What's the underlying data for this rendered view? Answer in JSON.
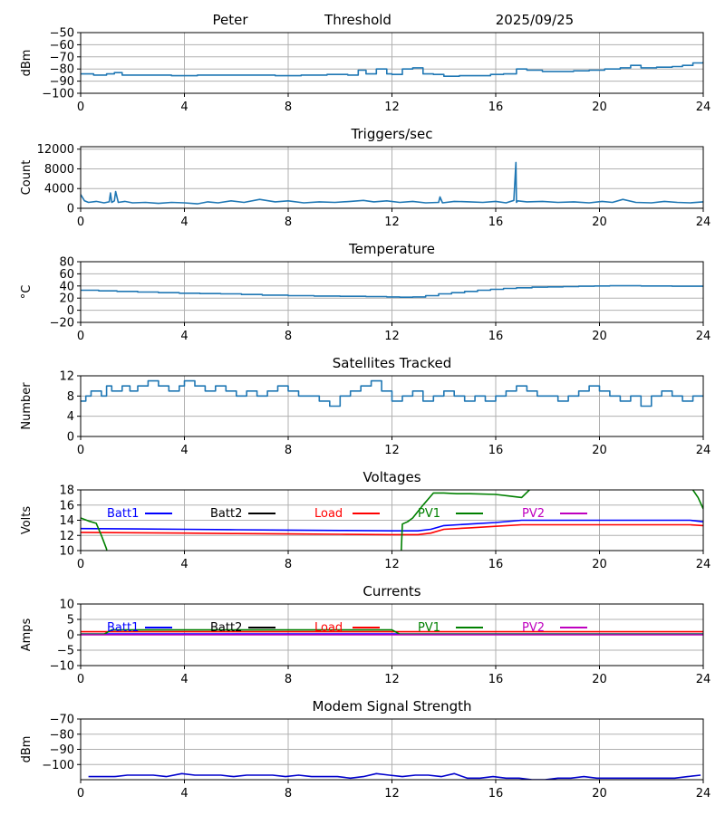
{
  "header": {
    "name": "Peter",
    "subtitle": "Threshold",
    "date": "2025/09/25"
  },
  "chart_data": [
    {
      "id": "threshold",
      "type": "line",
      "title": "",
      "ylabel": "dBm",
      "xlim": [
        0,
        24
      ],
      "xticks": [
        0,
        4,
        8,
        12,
        16,
        20,
        24
      ],
      "ylim": [
        -100,
        -50
      ],
      "yticks": [
        -100,
        -90,
        -80,
        -70,
        -60,
        -50
      ],
      "grid": true,
      "series": [
        {
          "color": "#1f77b4",
          "step": true,
          "x": [
            0,
            0.5,
            1.0,
            1.3,
            1.6,
            2.5,
            3.5,
            4.5,
            5.5,
            6.5,
            7.5,
            8.5,
            9.5,
            10.3,
            10.7,
            11.0,
            11.4,
            11.8,
            12.0,
            12.4,
            12.8,
            13.2,
            13.6,
            14.0,
            14.6,
            15.2,
            15.8,
            16.3,
            16.8,
            17.2,
            17.8,
            18.4,
            19.0,
            19.6,
            20.2,
            20.8,
            21.2,
            21.6,
            22.2,
            22.8,
            23.2,
            23.6,
            24.0
          ],
          "y": [
            -84,
            -85,
            -84,
            -83,
            -85,
            -85,
            -85.5,
            -85,
            -85,
            -85,
            -85.5,
            -85,
            -84.5,
            -85,
            -81,
            -84,
            -80,
            -84,
            -84.5,
            -80,
            -79,
            -84,
            -84.5,
            -86,
            -85.5,
            -85.5,
            -84.5,
            -84,
            -80,
            -81,
            -82,
            -82,
            -81.5,
            -81,
            -80,
            -79,
            -77,
            -79,
            -78.5,
            -78,
            -77,
            -75,
            -74
          ]
        }
      ]
    },
    {
      "id": "triggers",
      "type": "line",
      "title": "Triggers/sec",
      "ylabel": "Count",
      "xlim": [
        0,
        24
      ],
      "xticks": [
        0,
        4,
        8,
        12,
        16,
        20,
        24
      ],
      "ylim": [
        0,
        12500
      ],
      "yticks": [
        0,
        4000,
        8000,
        12000
      ],
      "grid": true,
      "series": [
        {
          "color": "#1f77b4",
          "step": false,
          "x": [
            0,
            0.15,
            0.3,
            0.6,
            0.9,
            1.1,
            1.15,
            1.2,
            1.3,
            1.35,
            1.45,
            1.7,
            2.0,
            2.5,
            3.0,
            3.5,
            4.0,
            4.5,
            4.9,
            5.3,
            5.8,
            6.3,
            6.9,
            7.5,
            8.0,
            8.6,
            9.2,
            9.8,
            10.4,
            10.9,
            11.3,
            11.8,
            12.3,
            12.8,
            13.3,
            13.8,
            13.85,
            13.95,
            14.4,
            15.0,
            15.5,
            16.0,
            16.4,
            16.7,
            16.78,
            16.8,
            16.85,
            17.2,
            17.8,
            18.4,
            19.0,
            19.6,
            20.1,
            20.5,
            20.9,
            21.4,
            22.0,
            22.5,
            23.0,
            23.5,
            24.0
          ],
          "y": [
            2800,
            1500,
            1200,
            1400,
            1100,
            1300,
            3100,
            1200,
            1500,
            3400,
            1200,
            1400,
            1100,
            1200,
            1000,
            1200,
            1100,
            900,
            1300,
            1100,
            1500,
            1200,
            1800,
            1300,
            1500,
            1100,
            1300,
            1200,
            1400,
            1600,
            1300,
            1500,
            1200,
            1400,
            1100,
            1200,
            2300,
            1100,
            1400,
            1300,
            1200,
            1400,
            1100,
            1600,
            9300,
            1200,
            1500,
            1300,
            1400,
            1200,
            1300,
            1100,
            1400,
            1200,
            1800,
            1200,
            1100,
            1400,
            1200,
            1100,
            1300
          ]
        }
      ]
    },
    {
      "id": "temperature",
      "type": "line",
      "title": "Temperature",
      "ylabel": "°C",
      "xlim": [
        0,
        24
      ],
      "xticks": [
        0,
        4,
        8,
        12,
        16,
        20,
        24
      ],
      "ylim": [
        -20,
        80
      ],
      "yticks": [
        -20,
        0,
        20,
        40,
        60,
        80
      ],
      "grid": true,
      "series": [
        {
          "color": "#1f77b4",
          "step": true,
          "x": [
            0,
            0.7,
            1.4,
            2.2,
            3.0,
            3.8,
            4.6,
            5.4,
            6.2,
            7.0,
            8.0,
            9.0,
            10.0,
            11.0,
            11.8,
            12.3,
            12.8,
            13.3,
            13.8,
            14.3,
            14.8,
            15.3,
            15.8,
            16.3,
            16.8,
            17.4,
            18.0,
            18.6,
            19.2,
            19.8,
            20.4,
            21.0,
            21.6,
            22.2,
            22.8,
            23.4,
            24.0
          ],
          "y": [
            33,
            32,
            31,
            30,
            29,
            28,
            27.5,
            27,
            26,
            25,
            24,
            23.5,
            23,
            22.5,
            22,
            21.5,
            22,
            24,
            27,
            29,
            31,
            33,
            34.5,
            36,
            37,
            38,
            38.5,
            39,
            39.5,
            40,
            40.5,
            40.5,
            40,
            40,
            39.5,
            39.5,
            39
          ]
        }
      ]
    },
    {
      "id": "satellites",
      "type": "line",
      "title": "Satellites Tracked",
      "ylabel": "Number",
      "xlim": [
        0,
        24
      ],
      "xticks": [
        0,
        4,
        8,
        12,
        16,
        20,
        24
      ],
      "ylim": [
        0,
        12
      ],
      "yticks": [
        0,
        4,
        8,
        12
      ],
      "grid": true,
      "series": [
        {
          "color": "#1f77b4",
          "step": true,
          "x": [
            0,
            0.2,
            0.4,
            0.8,
            1.0,
            1.2,
            1.6,
            1.9,
            2.2,
            2.6,
            3.0,
            3.4,
            3.8,
            4.0,
            4.4,
            4.8,
            5.2,
            5.6,
            6.0,
            6.4,
            6.8,
            7.2,
            7.6,
            8.0,
            8.4,
            8.8,
            9.2,
            9.6,
            10.0,
            10.4,
            10.8,
            11.2,
            11.6,
            12.0,
            12.4,
            12.8,
            13.2,
            13.6,
            14.0,
            14.4,
            14.8,
            15.2,
            15.6,
            16.0,
            16.4,
            16.8,
            17.2,
            17.6,
            18.0,
            18.4,
            18.8,
            19.2,
            19.6,
            20.0,
            20.4,
            20.8,
            21.2,
            21.6,
            22.0,
            22.4,
            22.8,
            23.2,
            23.6,
            24.0
          ],
          "y": [
            7,
            8,
            9,
            8,
            10,
            9,
            10,
            9,
            10,
            11,
            10,
            9,
            10,
            11,
            10,
            9,
            10,
            9,
            8,
            9,
            8,
            9,
            10,
            9,
            8,
            8,
            7,
            6,
            8,
            9,
            10,
            11,
            9,
            7,
            8,
            9,
            7,
            8,
            9,
            8,
            7,
            8,
            7,
            8,
            9,
            10,
            9,
            8,
            8,
            7,
            8,
            9,
            10,
            9,
            8,
            7,
            8,
            6,
            8,
            9,
            8,
            7,
            8,
            8
          ]
        }
      ]
    },
    {
      "id": "voltages",
      "type": "line",
      "title": "Voltages",
      "ylabel": "Volts",
      "xlim": [
        0,
        24
      ],
      "xticks": [
        0,
        4,
        8,
        12,
        16,
        20,
        24
      ],
      "ylim": [
        10,
        18
      ],
      "yticks": [
        10,
        12,
        14,
        16,
        18
      ],
      "grid": true,
      "legend": [
        {
          "label": "Batt1",
          "color": "#0000ff"
        },
        {
          "label": "Batt2",
          "color": "#000000"
        },
        {
          "label": "Load",
          "color": "#ff0000"
        },
        {
          "label": "PV1",
          "color": "#008000"
        },
        {
          "label": "PV2",
          "color": "#bf00bf"
        }
      ],
      "series": [
        {
          "name": "Batt1",
          "color": "#0000ff",
          "x": [
            0,
            2,
            4,
            6,
            8,
            10,
            12,
            13,
            13.5,
            14,
            15,
            16,
            17,
            18,
            20,
            22,
            23.5,
            24
          ],
          "y": [
            12.9,
            12.85,
            12.8,
            12.75,
            12.7,
            12.65,
            12.6,
            12.6,
            12.8,
            13.3,
            13.5,
            13.7,
            14.0,
            14.0,
            14.0,
            14.0,
            14.0,
            13.8
          ]
        },
        {
          "name": "Load",
          "color": "#ff0000",
          "x": [
            0,
            2,
            4,
            6,
            8,
            10,
            12,
            13,
            13.5,
            14,
            15,
            16,
            17,
            18,
            20,
            22,
            23.5,
            24
          ],
          "y": [
            12.4,
            12.35,
            12.3,
            12.25,
            12.2,
            12.15,
            12.1,
            12.1,
            12.3,
            12.8,
            13.0,
            13.2,
            13.4,
            13.4,
            13.4,
            13.4,
            13.4,
            13.3
          ]
        },
        {
          "name": "PV1",
          "color": "#008000",
          "x": [
            0,
            0.3,
            0.6,
            0.8,
            1.0,
            1.1,
            12.3,
            12.4,
            12.6,
            12.8,
            13.2,
            13.6,
            14.0,
            14.5,
            15.0,
            16.0,
            16.5,
            17.0,
            17.3,
            17.4,
            23.4,
            23.5,
            23.8,
            24.0
          ],
          "y": [
            14.3,
            13.9,
            13.6,
            12.0,
            10.2,
            5,
            5,
            13.5,
            13.8,
            14.3,
            16.0,
            17.6,
            17.6,
            17.5,
            17.5,
            17.4,
            17.2,
            17.0,
            18.0,
            19,
            19,
            18.5,
            17.0,
            15.5
          ]
        }
      ]
    },
    {
      "id": "currents",
      "type": "line",
      "title": "Currents",
      "ylabel": "Amps",
      "xlim": [
        0,
        24
      ],
      "xticks": [
        0,
        4,
        8,
        12,
        16,
        20,
        24
      ],
      "ylim": [
        -10,
        10
      ],
      "yticks": [
        -10,
        -5,
        0,
        5,
        10
      ],
      "grid": true,
      "legend": [
        {
          "label": "Batt1",
          "color": "#0000ff"
        },
        {
          "label": "Batt2",
          "color": "#000000"
        },
        {
          "label": "Load",
          "color": "#ff0000"
        },
        {
          "label": "PV1",
          "color": "#008000"
        },
        {
          "label": "PV2",
          "color": "#bf00bf"
        }
      ],
      "series": [
        {
          "name": "Batt1",
          "color": "#0000ff",
          "x": [
            0,
            24
          ],
          "y": [
            0.3,
            0.3
          ]
        },
        {
          "name": "Load",
          "color": "#ff0000",
          "x": [
            0,
            4,
            8,
            12,
            16,
            20,
            24
          ],
          "y": [
            1.0,
            1.0,
            1.0,
            1.0,
            1.0,
            1.0,
            1.0
          ]
        },
        {
          "name": "PV1",
          "color": "#008000",
          "x": [
            0,
            0.9,
            1.2,
            4,
            8,
            12,
            12.3,
            24
          ],
          "y": [
            0.2,
            0.2,
            1.6,
            1.6,
            1.6,
            1.6,
            0.2,
            0.2
          ]
        },
        {
          "name": "PV2",
          "color": "#bf00bf",
          "x": [
            0,
            24
          ],
          "y": [
            0,
            0
          ]
        }
      ]
    },
    {
      "id": "modem",
      "type": "line",
      "title": "Modem Signal Strength",
      "ylabel": "dBm",
      "xlim": [
        0,
        24
      ],
      "xticks": [
        0,
        4,
        8,
        12,
        16,
        20,
        24
      ],
      "ylim": [
        -110,
        -70
      ],
      "yticks": [
        -100,
        -90,
        -80,
        -70
      ],
      "grid": true,
      "series": [
        {
          "name": "",
          "color": "#0000cc",
          "x": [
            0.3,
            1.3,
            1.8,
            2.3,
            2.8,
            3.3,
            3.9,
            4.4,
            4.9,
            5.4,
            5.9,
            6.4,
            6.9,
            7.4,
            7.9,
            8.4,
            8.9,
            9.4,
            9.9,
            10.4,
            10.9,
            11.4,
            11.9,
            12.4,
            12.9,
            13.4,
            13.9,
            14.4,
            14.9,
            15.4,
            15.9,
            16.4,
            16.9,
            17.4,
            17.9,
            18.4,
            18.9,
            19.4,
            19.9,
            20.4,
            20.9,
            21.4,
            21.9,
            22.4,
            22.9,
            23.4,
            23.9
          ],
          "y": [
            -108,
            -108,
            -107,
            -107,
            -107,
            -108,
            -106,
            -107,
            -107,
            -107,
            -108,
            -107,
            -107,
            -107,
            -108,
            -107,
            -108,
            -108,
            -108,
            -109,
            -108,
            -106,
            -107,
            -108,
            -107,
            -107,
            -108,
            -106,
            -109,
            -109,
            -108,
            -109,
            -109,
            -110,
            -110,
            -109,
            -109,
            -108,
            -109,
            -109,
            -109,
            -109,
            -109,
            -109,
            -109,
            -108,
            -107
          ]
        }
      ]
    }
  ]
}
